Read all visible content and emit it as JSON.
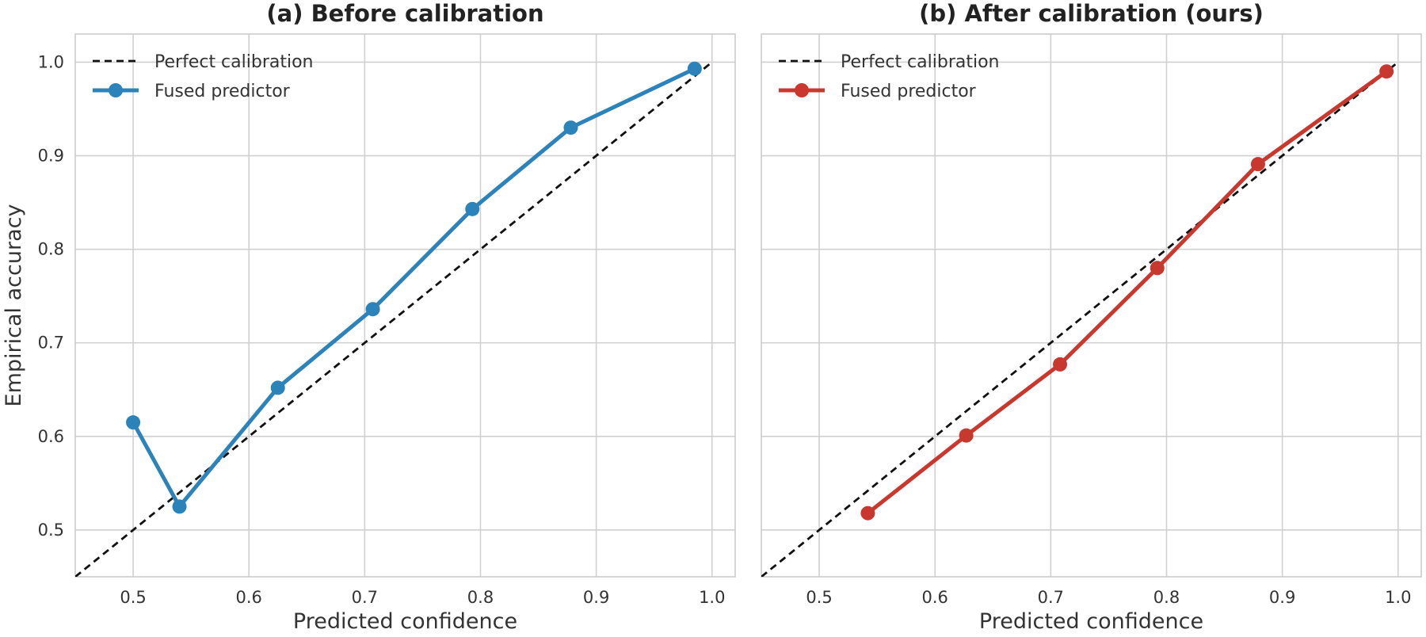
{
  "chart_data": [
    {
      "type": "line",
      "title": "(a) Before calibration",
      "xlabel": "Predicted confidence",
      "ylabel": "Empirical accuracy",
      "xlim": [
        0.45,
        1.02
      ],
      "ylim": [
        0.45,
        1.03
      ],
      "xticks": [
        "0.5",
        "0.6",
        "0.7",
        "0.8",
        "0.9",
        "1.0"
      ],
      "yticks": [
        "0.5",
        "0.6",
        "0.7",
        "0.8",
        "0.9",
        "1.0"
      ],
      "grid": true,
      "legend_position": "top-left",
      "series": [
        {
          "name": "Perfect calibration",
          "style": "dashed",
          "color": "#111111",
          "x": [
            0.45,
            1.0
          ],
          "y": [
            0.45,
            1.0
          ]
        },
        {
          "name": "Fused predictor",
          "style": "solid-marker",
          "color": "#2b83ba",
          "x": [
            0.5,
            0.54,
            0.625,
            0.707,
            0.793,
            0.878,
            0.985
          ],
          "y": [
            0.615,
            0.525,
            0.652,
            0.736,
            0.843,
            0.93,
            0.993
          ]
        }
      ]
    },
    {
      "type": "line",
      "title": "(b) After calibration (ours)",
      "xlabel": "Predicted confidence",
      "ylabel": "",
      "xlim": [
        0.45,
        1.02
      ],
      "ylim": [
        0.45,
        1.03
      ],
      "xticks": [
        "0.5",
        "0.6",
        "0.7",
        "0.8",
        "0.9",
        "1.0"
      ],
      "yticks": [],
      "grid": true,
      "legend_position": "top-left",
      "series": [
        {
          "name": "Perfect calibration",
          "style": "dashed",
          "color": "#111111",
          "x": [
            0.45,
            1.0
          ],
          "y": [
            0.45,
            1.0
          ]
        },
        {
          "name": "Fused predictor",
          "style": "solid-marker",
          "color": "#c8382e",
          "x": [
            0.542,
            0.627,
            0.708,
            0.792,
            0.879,
            0.99
          ],
          "y": [
            0.518,
            0.601,
            0.677,
            0.78,
            0.891,
            0.99
          ]
        }
      ]
    }
  ]
}
